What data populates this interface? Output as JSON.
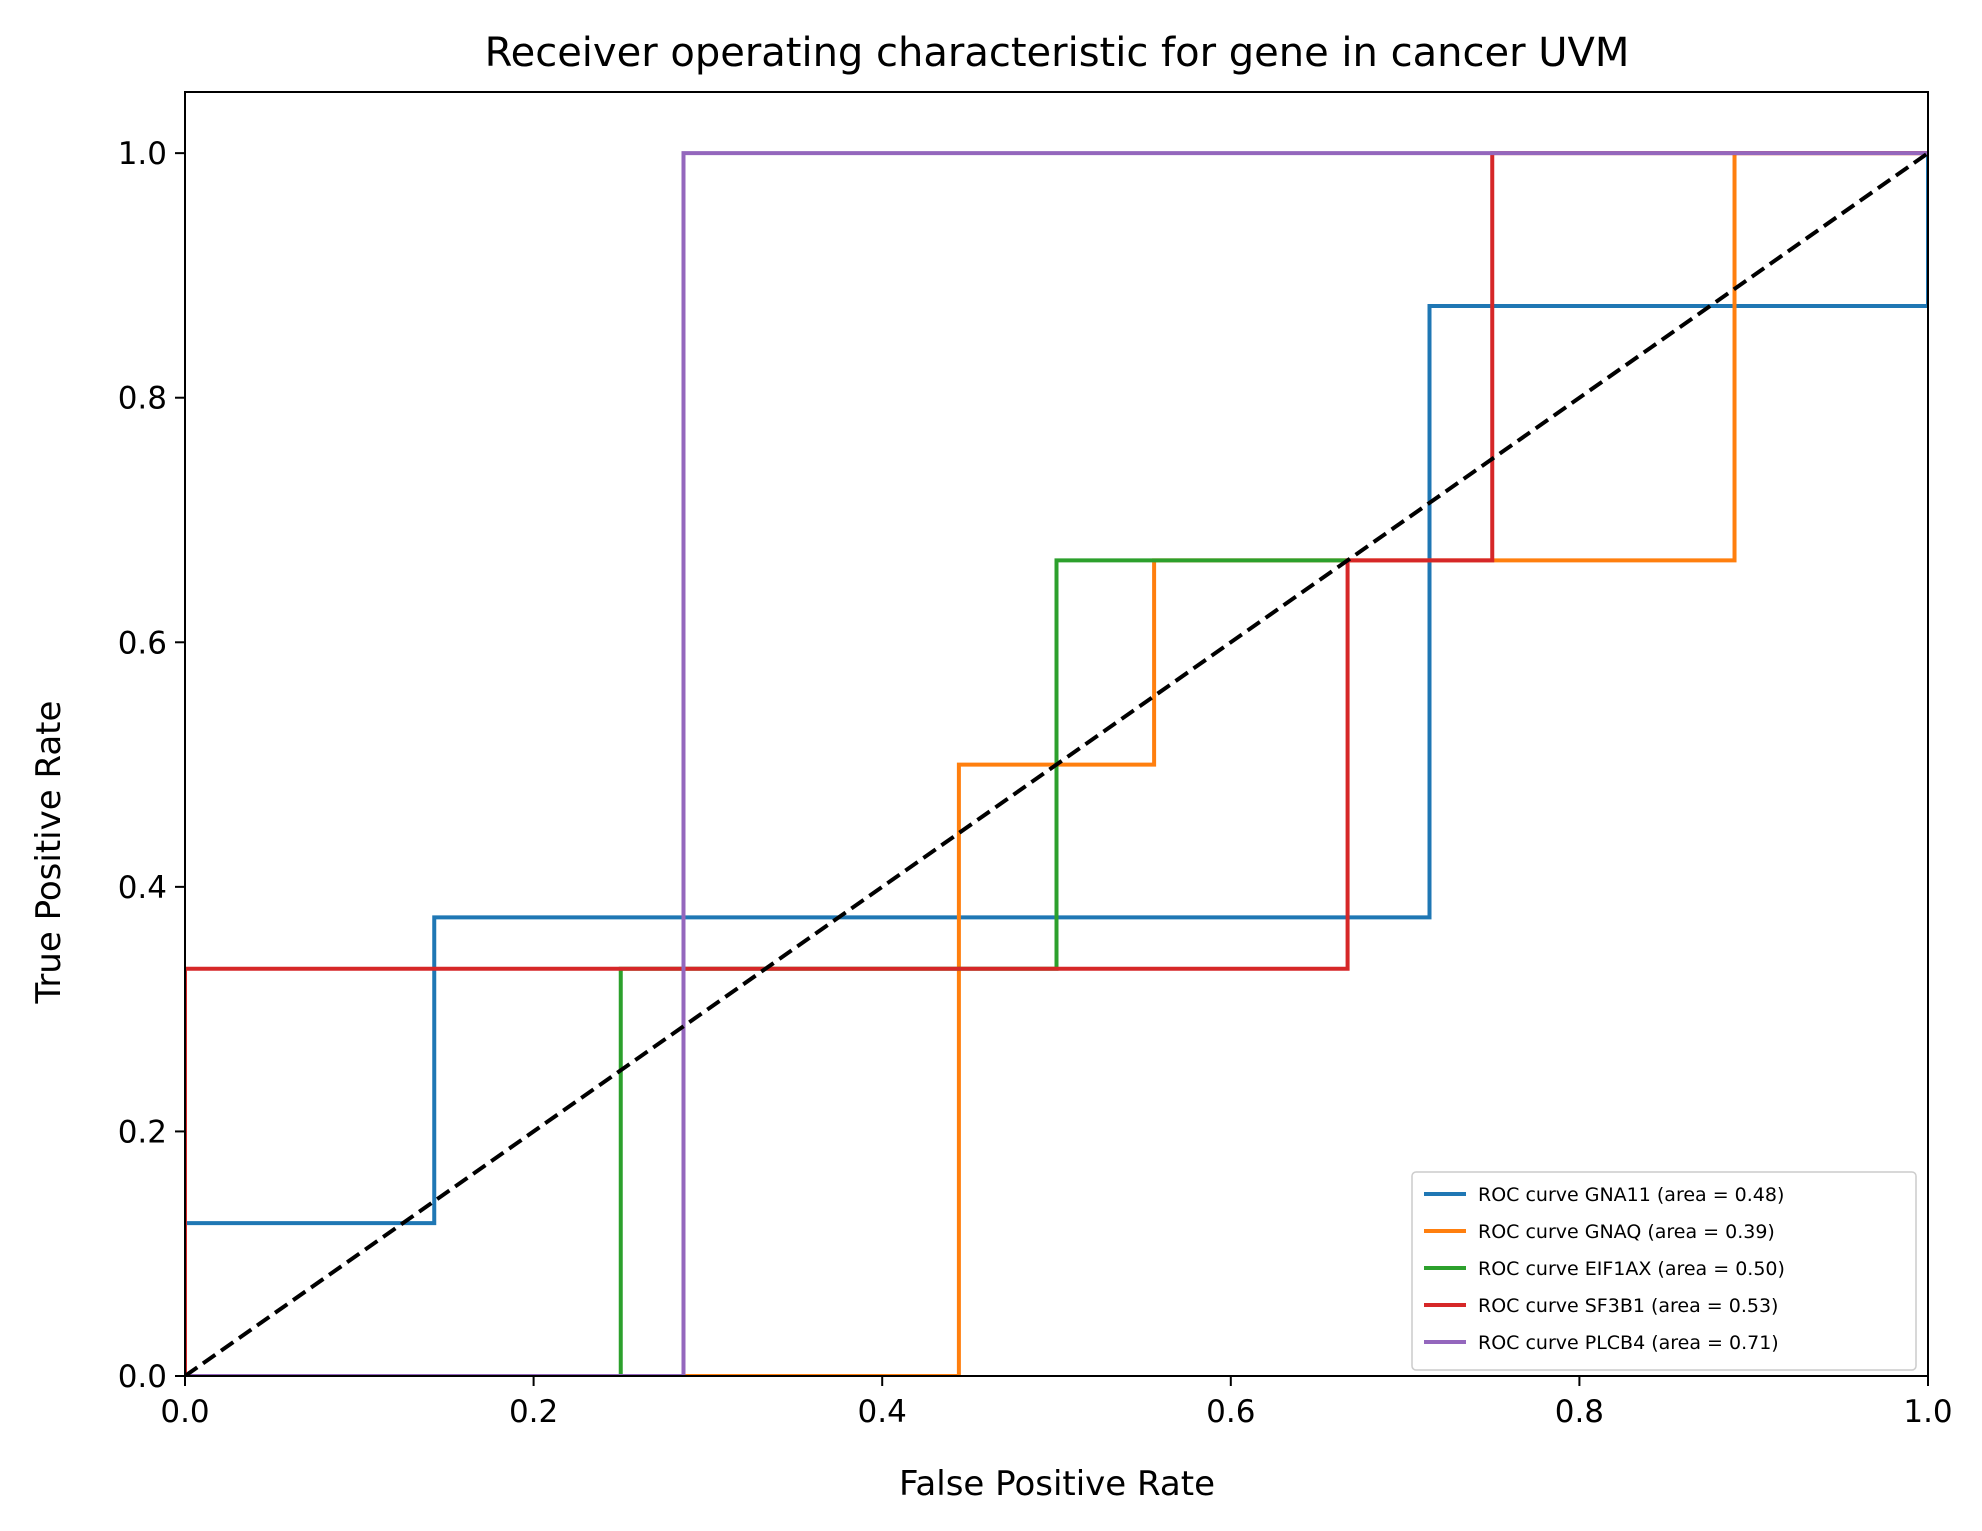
{
  "chart_data": {
    "type": "line",
    "title": "Receiver operating characteristic for gene in cancer UVM",
    "xlabel": "False Positive Rate",
    "ylabel": "True Positive Rate",
    "xlim": [
      0.0,
      1.0
    ],
    "ylim": [
      0.0,
      1.05
    ],
    "xticks": [
      0.0,
      0.2,
      0.4,
      0.6,
      0.8,
      1.0
    ],
    "yticks": [
      0.0,
      0.2,
      0.4,
      0.6,
      0.8,
      1.0
    ],
    "xtick_labels": [
      "0.0",
      "0.2",
      "0.4",
      "0.6",
      "0.8",
      "1.0"
    ],
    "ytick_labels": [
      "0.0",
      "0.2",
      "0.4",
      "0.6",
      "0.8",
      "1.0"
    ],
    "grid": false,
    "legend_position": "lower-right",
    "diagonal": {
      "x": [
        0,
        1
      ],
      "y": [
        0,
        1
      ],
      "color": "#000000",
      "style": "dashed"
    },
    "series": [
      {
        "name": "ROC curve GNA11 (area = 0.48)",
        "color": "#1f77b4",
        "x": [
          0,
          0,
          0.143,
          0.143,
          0.714,
          0.714,
          1.0,
          1.0
        ],
        "y": [
          0,
          0.125,
          0.125,
          0.375,
          0.375,
          0.875,
          0.875,
          1.0
        ]
      },
      {
        "name": "ROC curve GNAQ (area = 0.39)",
        "color": "#ff7f0e",
        "x": [
          0,
          0.444,
          0.444,
          0.556,
          0.556,
          0.889,
          0.889,
          1.0
        ],
        "y": [
          0,
          0,
          0.5,
          0.5,
          0.667,
          0.667,
          1.0,
          1.0
        ]
      },
      {
        "name": "ROC curve EIF1AX (area = 0.50)",
        "color": "#2ca02c",
        "x": [
          0,
          0.25,
          0.25,
          0.5,
          0.5,
          0.667
        ],
        "y": [
          0,
          0,
          0.333,
          0.333,
          0.667,
          0.667
        ]
      },
      {
        "name": "ROC curve SF3B1 (area = 0.53)",
        "color": "#d62728",
        "x": [
          0,
          0,
          0.667,
          0.667,
          0.75,
          0.75,
          1.0
        ],
        "y": [
          0,
          0.333,
          0.333,
          0.667,
          0.667,
          1.0,
          1.0
        ]
      },
      {
        "name": "ROC curve PLCB4 (area = 0.71)",
        "color": "#9467bd",
        "x": [
          0,
          0.286,
          0.286,
          1.0
        ],
        "y": [
          0,
          0,
          1.0,
          1.0
        ]
      }
    ]
  }
}
